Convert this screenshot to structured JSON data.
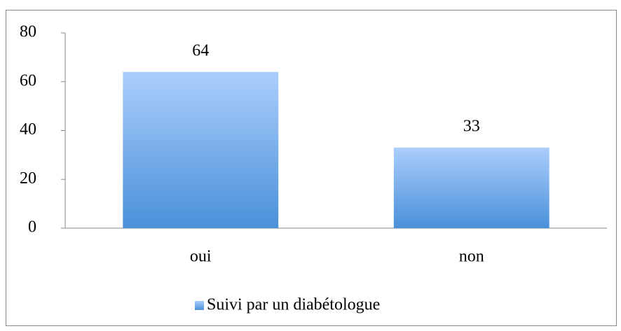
{
  "chart_data": {
    "type": "bar",
    "categories": [
      "oui",
      "non"
    ],
    "series": [
      {
        "name": "Suivi par un diabétologue",
        "color": "#4a90d9",
        "values": [
          64,
          33
        ]
      }
    ],
    "ylim": [
      0,
      80
    ],
    "yticks": [
      0,
      20,
      40,
      60,
      80
    ],
    "grid": false,
    "legend": "bottom"
  }
}
